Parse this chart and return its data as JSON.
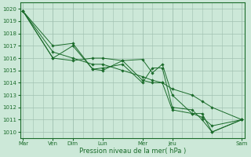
{
  "title": "",
  "xlabel": "Pression niveau de la mer( hPa )",
  "ylabel": "",
  "bg_color": "#cce8d8",
  "grid_color": "#a0c0b0",
  "line_color": "#1a6b2a",
  "ylim": [
    1009.5,
    1020.5
  ],
  "xlim": [
    -0.3,
    22.3
  ],
  "xtick_labels": [
    "Mar",
    "Ven",
    "Dim",
    "Lun",
    "Mer",
    "Jeu",
    "Sam"
  ],
  "xtick_positions": [
    0,
    3,
    5,
    8,
    12,
    15,
    22
  ],
  "ytick_positions": [
    1010,
    1011,
    1012,
    1013,
    1014,
    1015,
    1016,
    1017,
    1018,
    1019,
    1020
  ],
  "vline_positions": [
    0,
    3,
    5,
    8,
    12,
    15,
    22
  ],
  "lines": [
    {
      "x": [
        0,
        3,
        5,
        7,
        8,
        10,
        12,
        13,
        14,
        15,
        17,
        18,
        19,
        22
      ],
      "y": [
        1019.8,
        1017.0,
        1017.2,
        1015.1,
        1015.0,
        1015.8,
        1015.9,
        1014.8,
        1015.5,
        1013.0,
        1011.5,
        1011.2,
        1010.5,
        1011.0
      ]
    },
    {
      "x": [
        0,
        3,
        5,
        7,
        8,
        10,
        12,
        13,
        14,
        15,
        17,
        18,
        19,
        22
      ],
      "y": [
        1019.8,
        1016.0,
        1017.0,
        1015.1,
        1015.2,
        1015.5,
        1014.0,
        1015.2,
        1015.2,
        1012.0,
        1011.8,
        1011.0,
        1010.0,
        1011.0
      ]
    },
    {
      "x": [
        0,
        3,
        5,
        7,
        8,
        10,
        12,
        13,
        14,
        15,
        17,
        18,
        19,
        22
      ],
      "y": [
        1019.8,
        1016.5,
        1016.0,
        1015.5,
        1015.5,
        1015.0,
        1014.5,
        1014.2,
        1014.0,
        1013.5,
        1013.0,
        1012.5,
        1012.0,
        1011.0
      ]
    },
    {
      "x": [
        0,
        3,
        5,
        7,
        8,
        10,
        12,
        13,
        14,
        15,
        17,
        18,
        19,
        22
      ],
      "y": [
        1019.8,
        1016.0,
        1015.8,
        1016.0,
        1016.0,
        1015.8,
        1014.2,
        1014.0,
        1014.0,
        1011.8,
        1011.5,
        1011.5,
        1010.0,
        1011.0
      ]
    }
  ],
  "tick_fontsize": 5.0,
  "xlabel_fontsize": 6.0,
  "linewidth": 0.7,
  "markersize": 1.8
}
